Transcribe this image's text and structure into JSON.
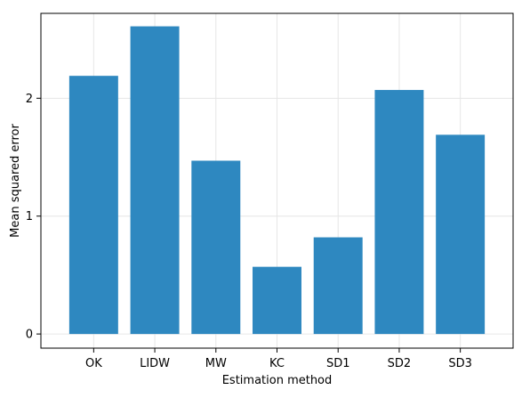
{
  "chart_data": {
    "type": "bar",
    "categories": [
      "OK",
      "LIDW",
      "MW",
      "KC",
      "SD1",
      "SD2",
      "SD3"
    ],
    "values": [
      2.19,
      2.61,
      1.47,
      0.57,
      0.82,
      2.07,
      1.69
    ],
    "xlabel": "Estimation method",
    "ylabel": "Mean squared error",
    "ylim": [
      -0.12,
      2.72
    ],
    "yticks": [
      0,
      1,
      2
    ],
    "grid": true,
    "bar_color": "#2e88c0"
  }
}
